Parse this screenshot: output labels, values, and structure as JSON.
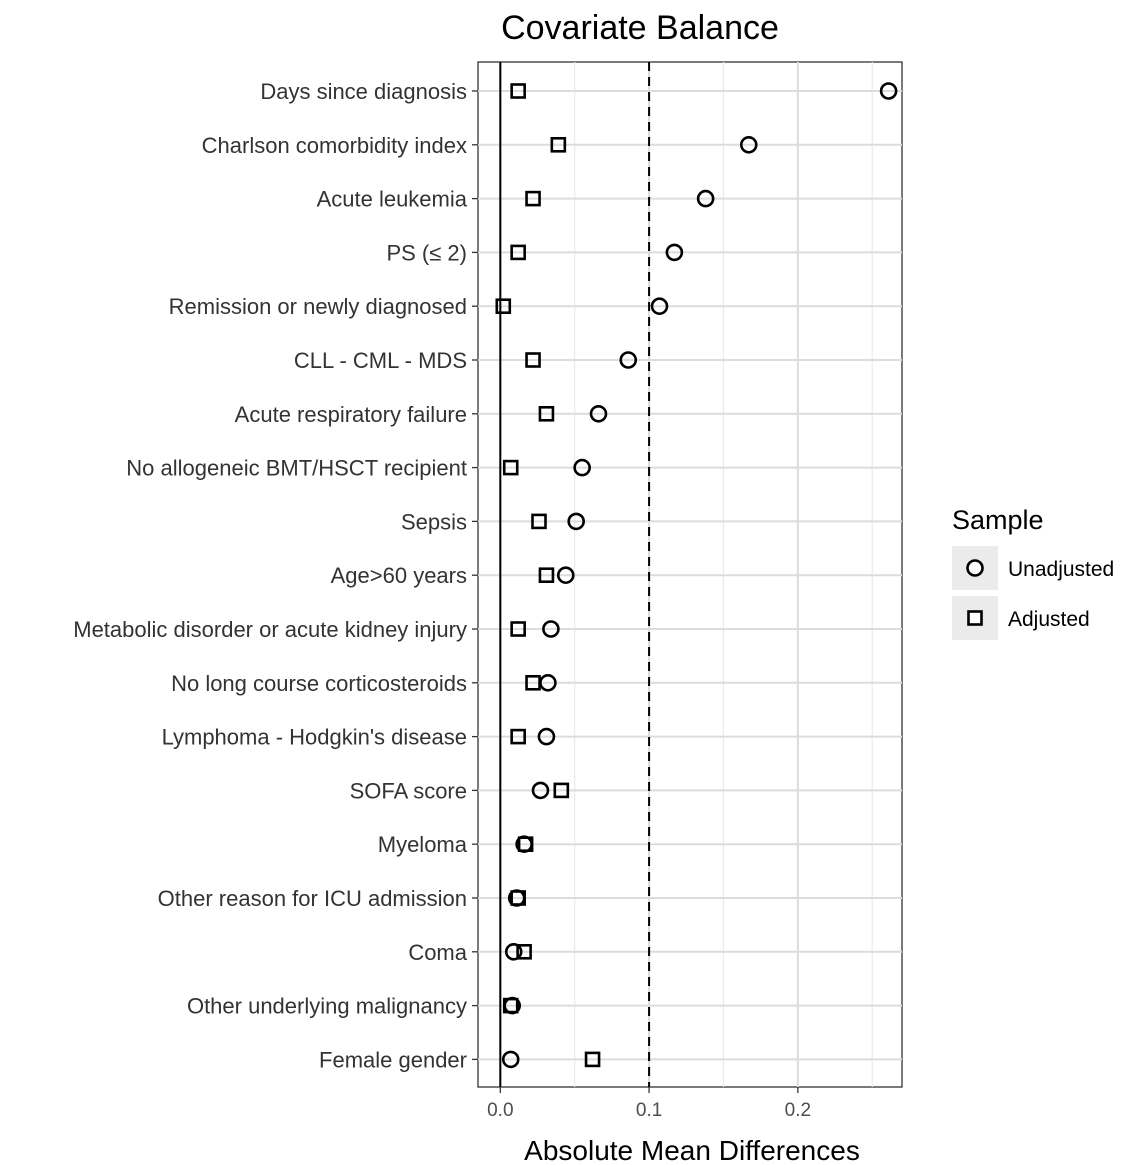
{
  "chart_data": {
    "type": "scatter",
    "title": "Covariate Balance",
    "xlabel": "Absolute Mean Differences",
    "ylabel": "",
    "xlim": [
      -0.015,
      0.27
    ],
    "xticks": [
      "0.0",
      "0.1",
      "0.2"
    ],
    "xtick_values": [
      0.0,
      0.1,
      0.2
    ],
    "threshold": 0.1,
    "grid": true,
    "legend_position": "right",
    "legend_title": "Sample",
    "categories": [
      "Days since diagnosis",
      "Charlson comorbidity index",
      "Acute leukemia",
      "PS (≤ 2)",
      "Remission or newly diagnosed",
      "CLL - CML - MDS",
      "Acute respiratory failure",
      "No allogeneic BMT/HSCT recipient",
      "Sepsis",
      "Age>60 years",
      "Metabolic disorder or acute kidney injury",
      "No long course corticosteroids",
      "Lymphoma - Hodgkin's disease",
      "SOFA score ",
      "Myeloma",
      "Other reason for ICU admission",
      "Coma",
      "Other underlying malignancy",
      "Female gender"
    ],
    "series": [
      {
        "name": "Unadjusted",
        "marker": "circle",
        "values": [
          0.261,
          0.167,
          0.138,
          0.117,
          0.107,
          0.086,
          0.066,
          0.055,
          0.051,
          0.044,
          0.034,
          0.032,
          0.031,
          0.027,
          0.016,
          0.011,
          0.009,
          0.008,
          0.007
        ]
      },
      {
        "name": "Adjusted",
        "marker": "square",
        "values": [
          0.012,
          0.039,
          0.022,
          0.012,
          0.002,
          0.022,
          0.031,
          0.007,
          0.026,
          0.031,
          0.012,
          0.022,
          0.012,
          0.041,
          0.017,
          0.012,
          0.016,
          0.007,
          0.062
        ]
      }
    ]
  }
}
